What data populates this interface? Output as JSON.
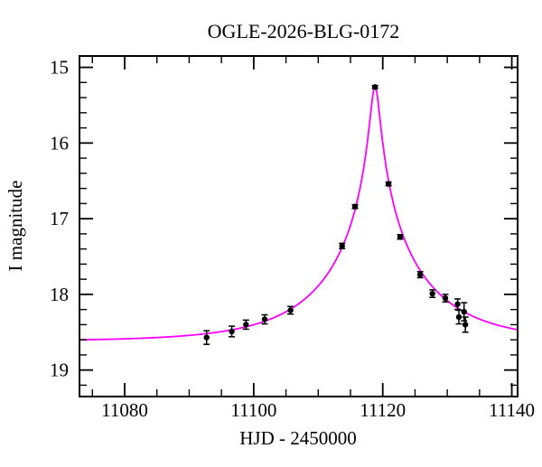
{
  "figure": {
    "title": "OGLE-2026-BLG-0172",
    "xlabel": "HJD - 2450000",
    "ylabel": "I magnitude"
  },
  "chart_data": {
    "type": "scatter",
    "title": "OGLE-2026-BLG-0172",
    "xlabel": "HJD - 2450000",
    "ylabel": "I magnitude",
    "grid": false,
    "legend": null,
    "background_color": "#ffffff",
    "frame_color": "#000000",
    "point_color": "#000000",
    "x_axis": {
      "min": 11073.0,
      "max": 11140.9,
      "major_ticks": [
        11080,
        11100,
        11120,
        11140
      ],
      "tick_labels": [
        "11080",
        "11100",
        "11120",
        "11140"
      ],
      "minor_ticks": [
        11075,
        11085,
        11090,
        11095,
        11105,
        11110,
        11115,
        11125,
        11130,
        11135
      ]
    },
    "y_axis": {
      "min": 14.85,
      "max": 19.35,
      "inverted": true,
      "major_ticks": [
        15,
        16,
        17,
        18,
        19
      ],
      "tick_labels": [
        "15",
        "16",
        "17",
        "18",
        "19"
      ],
      "minor_tick_step": 0.2
    },
    "points": [
      {
        "hjd": 11092.7,
        "mag": 18.57,
        "err": 0.09
      },
      {
        "hjd": 11096.6,
        "mag": 18.49,
        "err": 0.07
      },
      {
        "hjd": 11098.8,
        "mag": 18.4,
        "err": 0.06
      },
      {
        "hjd": 11101.7,
        "mag": 18.33,
        "err": 0.06
      },
      {
        "hjd": 11105.7,
        "mag": 18.21,
        "err": 0.05
      },
      {
        "hjd": 11113.7,
        "mag": 17.36,
        "err": 0.035
      },
      {
        "hjd": 11115.7,
        "mag": 16.84,
        "err": 0.025
      },
      {
        "hjd": 11118.8,
        "mag": 15.26,
        "err": 0.02
      },
      {
        "hjd": 11120.9,
        "mag": 16.54,
        "err": 0.025
      },
      {
        "hjd": 11122.7,
        "mag": 17.24,
        "err": 0.03
      },
      {
        "hjd": 11125.8,
        "mag": 17.74,
        "err": 0.04
      },
      {
        "hjd": 11127.7,
        "mag": 17.99,
        "err": 0.05
      },
      {
        "hjd": 11129.7,
        "mag": 18.05,
        "err": 0.05
      },
      {
        "hjd": 11131.6,
        "mag": 18.13,
        "err": 0.07
      },
      {
        "hjd": 11131.8,
        "mag": 18.3,
        "err": 0.09
      },
      {
        "hjd": 11132.6,
        "mag": 18.23,
        "err": 0.12
      },
      {
        "hjd": 11132.8,
        "mag": 18.4,
        "err": 0.1
      }
    ],
    "model_curve": {
      "model": "paczynski_microlensing",
      "t0": 11118.8,
      "tE_days": 15.5,
      "u0": 0.045,
      "baseline_mag": 18.62,
      "peak_mag": 15.25,
      "color": "#ff00ff"
    }
  }
}
